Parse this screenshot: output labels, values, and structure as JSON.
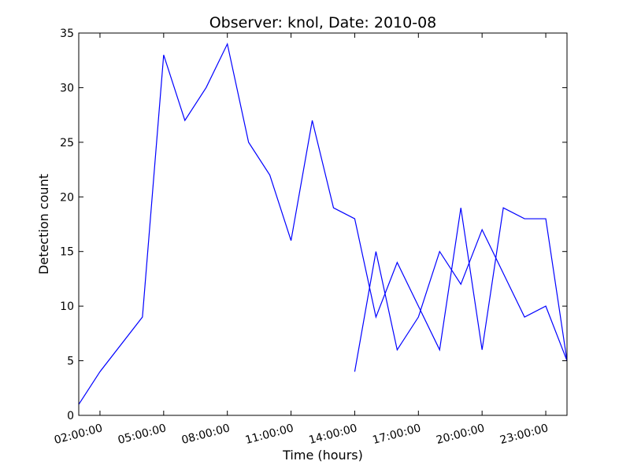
{
  "chart_data": {
    "type": "line",
    "title": "Observer: knol, Date: 2010-08",
    "xlabel": "Time (hours)",
    "ylabel": "Detection count",
    "xlim": [
      "01:00:00",
      "24:00:00"
    ],
    "ylim": [
      0,
      35
    ],
    "x_ticks": [
      "02:00:00",
      "05:00:00",
      "08:00:00",
      "11:00:00",
      "14:00:00",
      "17:00:00",
      "20:00:00",
      "23:00:00"
    ],
    "y_ticks": [
      "0",
      "5",
      "10",
      "15",
      "20",
      "25",
      "30",
      "35"
    ],
    "grid": false,
    "legend": "none",
    "color": "#0000ff",
    "series": [
      {
        "x": [
          "01:00:00",
          "02:00:00",
          "04:00:00",
          "05:00:00",
          "06:00:00",
          "07:00:00",
          "08:00:00",
          "09:00:00",
          "10:00:00",
          "11:00:00",
          "12:00:00",
          "13:00:00",
          "14:00:00",
          "15:00:00",
          "16:00:00",
          "17:00:00",
          "18:00:00",
          "19:00:00",
          "20:00:00",
          "21:00:00",
          "22:00:00",
          "23:00:00",
          "24:00:00"
        ],
        "values": [
          1,
          4,
          9,
          33,
          27,
          30,
          34,
          25,
          22,
          16,
          27,
          19,
          18,
          9,
          14,
          10,
          6,
          19,
          6,
          19,
          18,
          18,
          5
        ]
      },
      {
        "x": [
          "14:00:00",
          "15:00:00",
          "16:00:00",
          "17:00:00",
          "18:00:00",
          "19:00:00",
          "20:00:00",
          "21:00:00",
          "22:00:00",
          "23:00:00",
          "24:00:00"
        ],
        "values": [
          4,
          15,
          6,
          9,
          15,
          12,
          17,
          13,
          9,
          10,
          5
        ]
      }
    ]
  }
}
